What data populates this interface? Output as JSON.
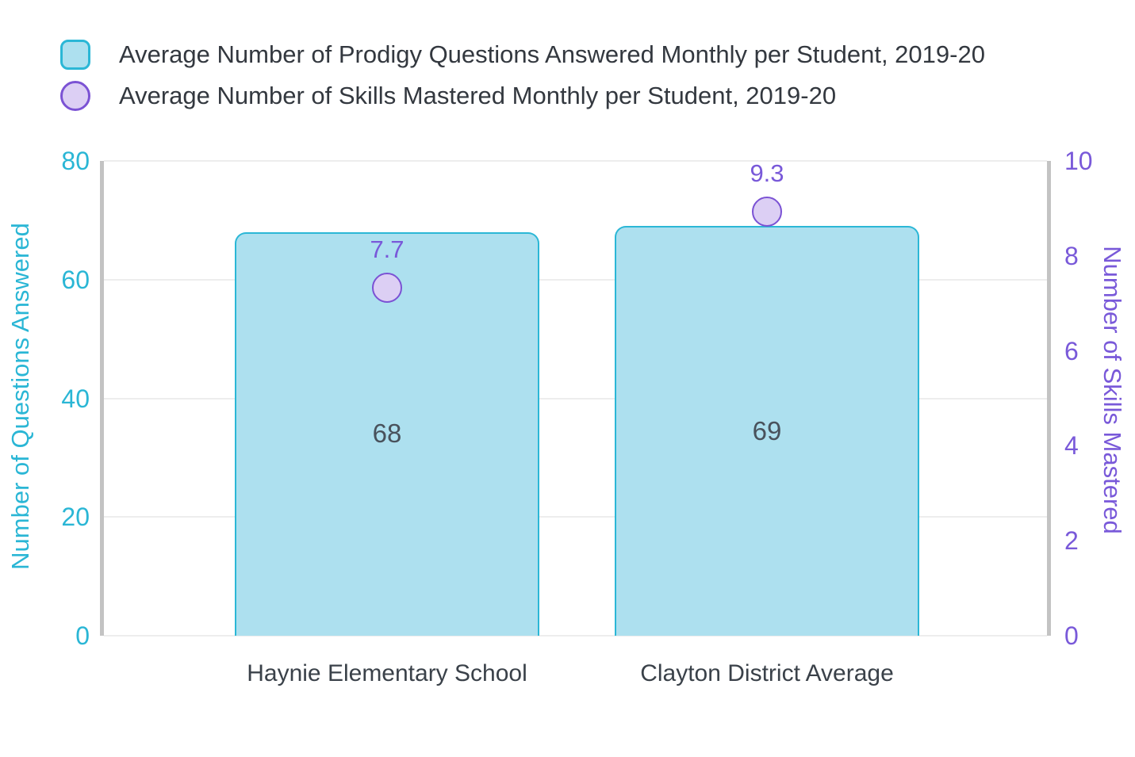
{
  "legend": {
    "items": [
      {
        "label": "Average Number of Prodigy Questions Answered Monthly per Student, 2019-20",
        "marker": "square",
        "fill": "#ADE0EF",
        "border": "#2BB7D6"
      },
      {
        "label": "Average Number of Skills Mastered Monthly per Student, 2019-20",
        "marker": "circle",
        "fill": "#DCCFF4",
        "border": "#7B52D4"
      }
    ]
  },
  "chart_data": {
    "type": "bar",
    "categories": [
      "Haynie Elementary School",
      "Clayton District Average"
    ],
    "series": [
      {
        "name": "Average Number of Prodigy Questions Answered Monthly per Student, 2019-20",
        "type": "bar",
        "axis": "left",
        "values": [
          68,
          69
        ],
        "value_labels": [
          "68",
          "69"
        ],
        "fill": "#ADE0EF",
        "border": "#2BB7D6"
      },
      {
        "name": "Average Number of Skills Mastered Monthly per Student, 2019-20",
        "type": "scatter",
        "axis": "right",
        "values": [
          7.7,
          9.3
        ],
        "value_labels": [
          "7.7",
          "9.3"
        ],
        "fill": "#DCCFF4",
        "border": "#7B52D4"
      }
    ],
    "left_axis": {
      "label": "Number of Questions Answered",
      "ticks": [
        "0",
        "20",
        "40",
        "60",
        "80"
      ],
      "tick_values": [
        0,
        20,
        40,
        60,
        80
      ],
      "range": [
        0,
        80
      ],
      "color": "#2AB6D5"
    },
    "right_axis": {
      "label": "Number of Skills Mastered",
      "ticks": [
        "0",
        "2",
        "4",
        "6",
        "8",
        "10"
      ],
      "tick_values": [
        0,
        2,
        4,
        6,
        8,
        10
      ],
      "range": [
        0,
        10
      ],
      "color": "#7959D9"
    },
    "grid": true,
    "legend_position": "top-left",
    "background": "#FFFFFF"
  }
}
